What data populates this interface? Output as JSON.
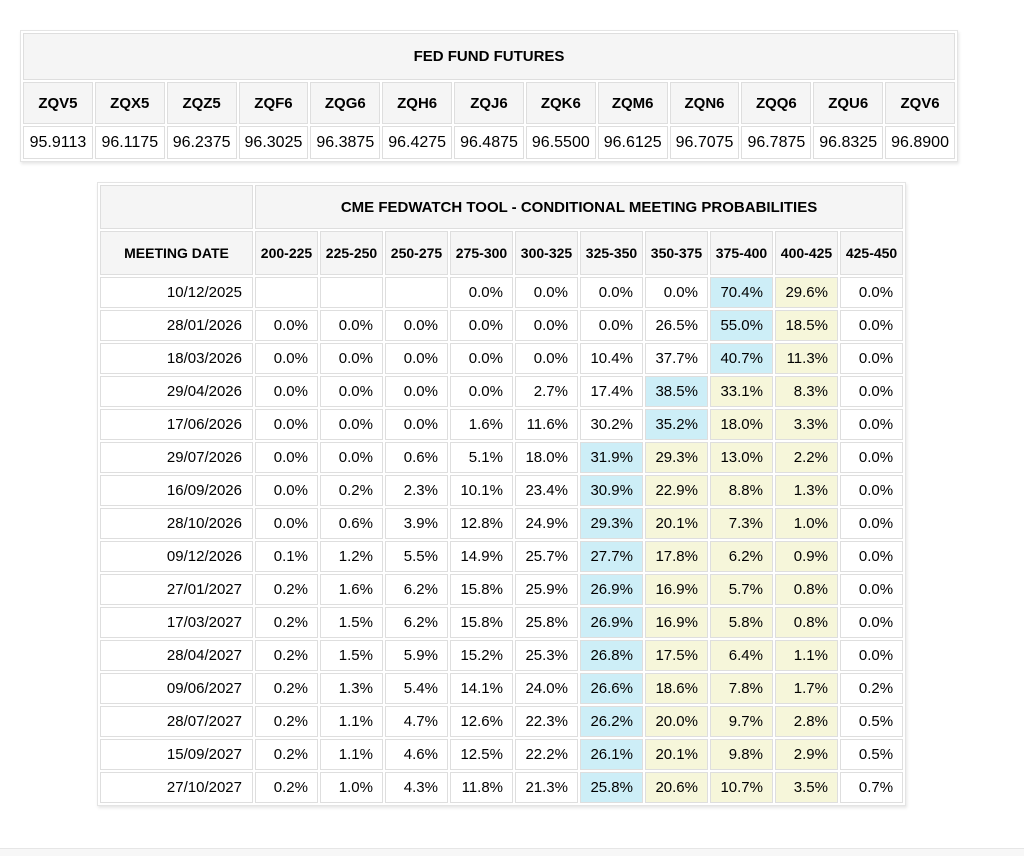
{
  "futures": {
    "title": "FED FUND FUTURES",
    "columns": [
      {
        "symbol": "ZQV5",
        "price": "95.9113"
      },
      {
        "symbol": "ZQX5",
        "price": "96.1175"
      },
      {
        "symbol": "ZQZ5",
        "price": "96.2375"
      },
      {
        "symbol": "ZQF6",
        "price": "96.3025"
      },
      {
        "symbol": "ZQG6",
        "price": "96.3875"
      },
      {
        "symbol": "ZQH6",
        "price": "96.4275"
      },
      {
        "symbol": "ZQJ6",
        "price": "96.4875"
      },
      {
        "symbol": "ZQK6",
        "price": "96.5500"
      },
      {
        "symbol": "ZQM6",
        "price": "96.6125"
      },
      {
        "symbol": "ZQN6",
        "price": "96.7075"
      },
      {
        "symbol": "ZQQ6",
        "price": "96.7875"
      },
      {
        "symbol": "ZQU6",
        "price": "96.8325"
      },
      {
        "symbol": "ZQV6",
        "price": "96.8900"
      }
    ]
  },
  "fedwatch": {
    "title": "CME FEDWATCH TOOL - CONDITIONAL MEETING PROBABILITIES",
    "date_header": "MEETING DATE",
    "rate_ranges": [
      "200-225",
      "225-250",
      "250-275",
      "275-300",
      "300-325",
      "325-350",
      "350-375",
      "375-400",
      "400-425",
      "425-450"
    ],
    "rows": [
      {
        "date": "10/12/2025",
        "values": [
          "",
          "",
          "",
          "0.0%",
          "0.0%",
          "0.0%",
          "0.0%",
          "70.4%",
          "29.6%",
          "0.0%"
        ],
        "highlights": [
          "",
          "",
          "",
          "",
          "",
          "",
          "",
          "blue",
          "yellow",
          ""
        ]
      },
      {
        "date": "28/01/2026",
        "values": [
          "0.0%",
          "0.0%",
          "0.0%",
          "0.0%",
          "0.0%",
          "0.0%",
          "26.5%",
          "55.0%",
          "18.5%",
          "0.0%"
        ],
        "highlights": [
          "",
          "",
          "",
          "",
          "",
          "",
          "",
          "blue",
          "yellow",
          ""
        ]
      },
      {
        "date": "18/03/2026",
        "values": [
          "0.0%",
          "0.0%",
          "0.0%",
          "0.0%",
          "0.0%",
          "10.4%",
          "37.7%",
          "40.7%",
          "11.3%",
          "0.0%"
        ],
        "highlights": [
          "",
          "",
          "",
          "",
          "",
          "",
          "",
          "blue",
          "yellow",
          ""
        ]
      },
      {
        "date": "29/04/2026",
        "values": [
          "0.0%",
          "0.0%",
          "0.0%",
          "0.0%",
          "2.7%",
          "17.4%",
          "38.5%",
          "33.1%",
          "8.3%",
          "0.0%"
        ],
        "highlights": [
          "",
          "",
          "",
          "",
          "",
          "",
          "blue",
          "yellow",
          "yellow",
          ""
        ]
      },
      {
        "date": "17/06/2026",
        "values": [
          "0.0%",
          "0.0%",
          "0.0%",
          "1.6%",
          "11.6%",
          "30.2%",
          "35.2%",
          "18.0%",
          "3.3%",
          "0.0%"
        ],
        "highlights": [
          "",
          "",
          "",
          "",
          "",
          "",
          "blue",
          "yellow",
          "yellow",
          ""
        ]
      },
      {
        "date": "29/07/2026",
        "values": [
          "0.0%",
          "0.0%",
          "0.6%",
          "5.1%",
          "18.0%",
          "31.9%",
          "29.3%",
          "13.0%",
          "2.2%",
          "0.0%"
        ],
        "highlights": [
          "",
          "",
          "",
          "",
          "",
          "blue",
          "yellow",
          "yellow",
          "yellow",
          ""
        ]
      },
      {
        "date": "16/09/2026",
        "values": [
          "0.0%",
          "0.2%",
          "2.3%",
          "10.1%",
          "23.4%",
          "30.9%",
          "22.9%",
          "8.8%",
          "1.3%",
          "0.0%"
        ],
        "highlights": [
          "",
          "",
          "",
          "",
          "",
          "blue",
          "yellow",
          "yellow",
          "yellow",
          ""
        ]
      },
      {
        "date": "28/10/2026",
        "values": [
          "0.0%",
          "0.6%",
          "3.9%",
          "12.8%",
          "24.9%",
          "29.3%",
          "20.1%",
          "7.3%",
          "1.0%",
          "0.0%"
        ],
        "highlights": [
          "",
          "",
          "",
          "",
          "",
          "blue",
          "yellow",
          "yellow",
          "yellow",
          ""
        ]
      },
      {
        "date": "09/12/2026",
        "values": [
          "0.1%",
          "1.2%",
          "5.5%",
          "14.9%",
          "25.7%",
          "27.7%",
          "17.8%",
          "6.2%",
          "0.9%",
          "0.0%"
        ],
        "highlights": [
          "",
          "",
          "",
          "",
          "",
          "blue",
          "yellow",
          "yellow",
          "yellow",
          ""
        ]
      },
      {
        "date": "27/01/2027",
        "values": [
          "0.2%",
          "1.6%",
          "6.2%",
          "15.8%",
          "25.9%",
          "26.9%",
          "16.9%",
          "5.7%",
          "0.8%",
          "0.0%"
        ],
        "highlights": [
          "",
          "",
          "",
          "",
          "",
          "blue",
          "yellow",
          "yellow",
          "yellow",
          ""
        ]
      },
      {
        "date": "17/03/2027",
        "values": [
          "0.2%",
          "1.5%",
          "6.2%",
          "15.8%",
          "25.8%",
          "26.9%",
          "16.9%",
          "5.8%",
          "0.8%",
          "0.0%"
        ],
        "highlights": [
          "",
          "",
          "",
          "",
          "",
          "blue",
          "yellow",
          "yellow",
          "yellow",
          ""
        ]
      },
      {
        "date": "28/04/2027",
        "values": [
          "0.2%",
          "1.5%",
          "5.9%",
          "15.2%",
          "25.3%",
          "26.8%",
          "17.5%",
          "6.4%",
          "1.1%",
          "0.0%"
        ],
        "highlights": [
          "",
          "",
          "",
          "",
          "",
          "blue",
          "yellow",
          "yellow",
          "yellow",
          ""
        ]
      },
      {
        "date": "09/06/2027",
        "values": [
          "0.2%",
          "1.3%",
          "5.4%",
          "14.1%",
          "24.0%",
          "26.6%",
          "18.6%",
          "7.8%",
          "1.7%",
          "0.2%"
        ],
        "highlights": [
          "",
          "",
          "",
          "",
          "",
          "blue",
          "yellow",
          "yellow",
          "yellow",
          ""
        ]
      },
      {
        "date": "28/07/2027",
        "values": [
          "0.2%",
          "1.1%",
          "4.7%",
          "12.6%",
          "22.3%",
          "26.2%",
          "20.0%",
          "9.7%",
          "2.8%",
          "0.5%"
        ],
        "highlights": [
          "",
          "",
          "",
          "",
          "",
          "blue",
          "yellow",
          "yellow",
          "yellow",
          ""
        ]
      },
      {
        "date": "15/09/2027",
        "values": [
          "0.2%",
          "1.1%",
          "4.6%",
          "12.5%",
          "22.2%",
          "26.1%",
          "20.1%",
          "9.8%",
          "2.9%",
          "0.5%"
        ],
        "highlights": [
          "",
          "",
          "",
          "",
          "",
          "blue",
          "yellow",
          "yellow",
          "yellow",
          ""
        ]
      },
      {
        "date": "27/10/2027",
        "values": [
          "0.2%",
          "1.0%",
          "4.3%",
          "11.8%",
          "21.3%",
          "25.8%",
          "20.6%",
          "10.7%",
          "3.5%",
          "0.7%"
        ],
        "highlights": [
          "",
          "",
          "",
          "",
          "",
          "blue",
          "yellow",
          "yellow",
          "yellow",
          ""
        ]
      }
    ]
  },
  "colors": {
    "highlight_blue": "#cdeef7",
    "highlight_yellow": "#f6f6da",
    "header_bg": "#f5f5f5"
  }
}
